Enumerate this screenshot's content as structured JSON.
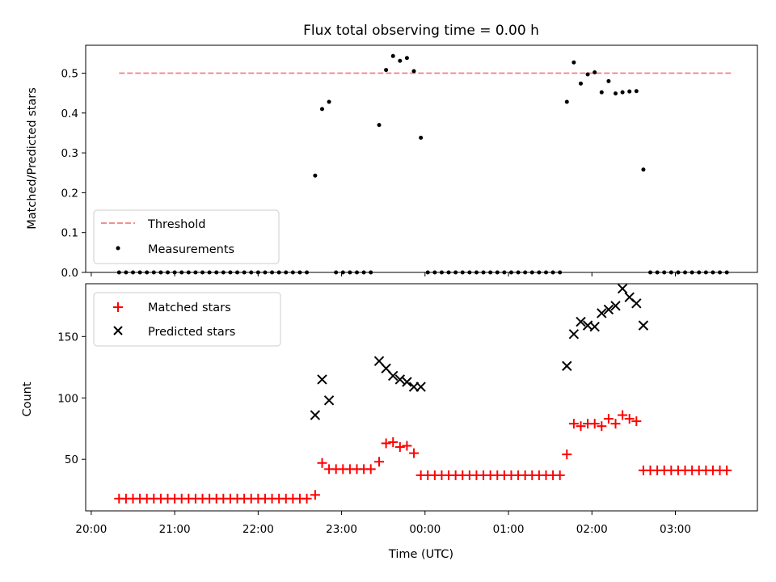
{
  "chart_data": [
    {
      "type": "scatter",
      "title": "Flux total observing time = 0.00 h",
      "ylabel": "Matched/Predicted stars",
      "xlabel": "",
      "ylim": [
        0,
        0.57
      ],
      "xlim": [
        "19:56",
        "03:59"
      ],
      "yticks": [
        0.0,
        0.1,
        0.2,
        0.3,
        0.4,
        0.5
      ],
      "ytick_labels": [
        "0.0",
        "0.1",
        "0.2",
        "0.3",
        "0.4",
        "0.5"
      ],
      "legend_position": "lower-left",
      "threshold": {
        "name": "Threshold",
        "value": 0.5,
        "x_range": [
          "20:20",
          "03:40"
        ],
        "color": "#f08080",
        "style": "dashed"
      },
      "series": [
        {
          "name": "Measurements",
          "color": "#000000",
          "marker": "dot",
          "points": [
            [
              "20:20",
              0
            ],
            [
              "20:25",
              0
            ],
            [
              "20:30",
              0
            ],
            [
              "20:35",
              0
            ],
            [
              "20:40",
              0
            ],
            [
              "20:45",
              0
            ],
            [
              "20:50",
              0
            ],
            [
              "20:55",
              0
            ],
            [
              "21:00",
              0
            ],
            [
              "21:05",
              0
            ],
            [
              "21:10",
              0
            ],
            [
              "21:15",
              0
            ],
            [
              "21:20",
              0
            ],
            [
              "21:25",
              0
            ],
            [
              "21:30",
              0
            ],
            [
              "21:35",
              0
            ],
            [
              "21:40",
              0
            ],
            [
              "21:45",
              0
            ],
            [
              "21:50",
              0
            ],
            [
              "21:55",
              0
            ],
            [
              "22:00",
              0
            ],
            [
              "22:05",
              0
            ],
            [
              "22:10",
              0
            ],
            [
              "22:15",
              0
            ],
            [
              "22:20",
              0
            ],
            [
              "22:25",
              0
            ],
            [
              "22:30",
              0
            ],
            [
              "22:35",
              0
            ],
            [
              "22:41",
              0.243
            ],
            [
              "22:46",
              0.41
            ],
            [
              "22:51",
              0.428
            ],
            [
              "22:56",
              0
            ],
            [
              "23:01",
              0
            ],
            [
              "23:06",
              0
            ],
            [
              "23:11",
              0
            ],
            [
              "23:16",
              0
            ],
            [
              "23:21",
              0
            ],
            [
              "23:27",
              0.37
            ],
            [
              "23:32",
              0.508
            ],
            [
              "23:37",
              0.543
            ],
            [
              "23:42",
              0.531
            ],
            [
              "23:47",
              0.538
            ],
            [
              "23:52",
              0.505
            ],
            [
              "23:57",
              0.338
            ],
            [
              "00:02",
              0
            ],
            [
              "00:07",
              0
            ],
            [
              "00:12",
              0
            ],
            [
              "00:17",
              0
            ],
            [
              "00:22",
              0
            ],
            [
              "00:27",
              0
            ],
            [
              "00:32",
              0
            ],
            [
              "00:37",
              0
            ],
            [
              "00:42",
              0
            ],
            [
              "00:47",
              0
            ],
            [
              "00:52",
              0
            ],
            [
              "00:57",
              0
            ],
            [
              "01:02",
              0
            ],
            [
              "01:07",
              0
            ],
            [
              "01:12",
              0
            ],
            [
              "01:17",
              0
            ],
            [
              "01:22",
              0
            ],
            [
              "01:27",
              0
            ],
            [
              "01:32",
              0
            ],
            [
              "01:37",
              0
            ],
            [
              "01:42",
              0.428
            ],
            [
              "01:47",
              0.527
            ],
            [
              "01:52",
              0.474
            ],
            [
              "01:57",
              0.497
            ],
            [
              "02:02",
              0.502
            ],
            [
              "02:07",
              0.452
            ],
            [
              "02:12",
              0.48
            ],
            [
              "02:17",
              0.449
            ],
            [
              "02:22",
              0.452
            ],
            [
              "02:27",
              0.454
            ],
            [
              "02:32",
              0.455
            ],
            [
              "02:37",
              0.258
            ],
            [
              "02:42",
              0
            ],
            [
              "02:47",
              0
            ],
            [
              "02:52",
              0
            ],
            [
              "02:57",
              0
            ],
            [
              "03:02",
              0
            ],
            [
              "03:07",
              0
            ],
            [
              "03:12",
              0
            ],
            [
              "03:17",
              0
            ],
            [
              "03:22",
              0
            ],
            [
              "03:27",
              0
            ],
            [
              "03:32",
              0
            ],
            [
              "03:37",
              0
            ]
          ]
        }
      ]
    },
    {
      "type": "scatter",
      "title": "",
      "ylabel": "Count",
      "xlabel": "Time (UTC)",
      "ylim": [
        8,
        193
      ],
      "xlim": [
        "19:56",
        "03:59"
      ],
      "yticks": [
        50,
        100,
        150
      ],
      "ytick_labels": [
        "50",
        "100",
        "150"
      ],
      "xticks": [
        "20:00",
        "21:00",
        "22:00",
        "23:00",
        "00:00",
        "01:00",
        "02:00",
        "03:00"
      ],
      "xtick_labels": [
        "20:00",
        "21:00",
        "22:00",
        "23:00",
        "00:00",
        "01:00",
        "02:00",
        "03:00"
      ],
      "legend_position": "upper-left",
      "series": [
        {
          "name": "Matched stars",
          "color": "#ff0000",
          "marker": "plus",
          "points": [
            [
              "20:20",
              18
            ],
            [
              "20:25",
              18
            ],
            [
              "20:30",
              18
            ],
            [
              "20:35",
              18
            ],
            [
              "20:40",
              18
            ],
            [
              "20:45",
              18
            ],
            [
              "20:50",
              18
            ],
            [
              "20:55",
              18
            ],
            [
              "21:00",
              18
            ],
            [
              "21:05",
              18
            ],
            [
              "21:10",
              18
            ],
            [
              "21:15",
              18
            ],
            [
              "21:20",
              18
            ],
            [
              "21:25",
              18
            ],
            [
              "21:30",
              18
            ],
            [
              "21:35",
              18
            ],
            [
              "21:40",
              18
            ],
            [
              "21:45",
              18
            ],
            [
              "21:50",
              18
            ],
            [
              "21:55",
              18
            ],
            [
              "22:00",
              18
            ],
            [
              "22:05",
              18
            ],
            [
              "22:10",
              18
            ],
            [
              "22:15",
              18
            ],
            [
              "22:20",
              18
            ],
            [
              "22:25",
              18
            ],
            [
              "22:30",
              18
            ],
            [
              "22:35",
              18
            ],
            [
              "22:41",
              21
            ],
            [
              "22:46",
              47
            ],
            [
              "22:51",
              42
            ],
            [
              "22:56",
              42
            ],
            [
              "23:01",
              42
            ],
            [
              "23:06",
              42
            ],
            [
              "23:11",
              42
            ],
            [
              "23:16",
              42
            ],
            [
              "23:21",
              42
            ],
            [
              "23:27",
              48
            ],
            [
              "23:32",
              63
            ],
            [
              "23:37",
              64
            ],
            [
              "23:42",
              60
            ],
            [
              "23:47",
              61
            ],
            [
              "23:52",
              55
            ],
            [
              "23:57",
              37
            ],
            [
              "00:02",
              37
            ],
            [
              "00:07",
              37
            ],
            [
              "00:12",
              37
            ],
            [
              "00:17",
              37
            ],
            [
              "00:22",
              37
            ],
            [
              "00:27",
              37
            ],
            [
              "00:32",
              37
            ],
            [
              "00:37",
              37
            ],
            [
              "00:42",
              37
            ],
            [
              "00:47",
              37
            ],
            [
              "00:52",
              37
            ],
            [
              "00:57",
              37
            ],
            [
              "01:02",
              37
            ],
            [
              "01:07",
              37
            ],
            [
              "01:12",
              37
            ],
            [
              "01:17",
              37
            ],
            [
              "01:22",
              37
            ],
            [
              "01:27",
              37
            ],
            [
              "01:32",
              37
            ],
            [
              "01:37",
              37
            ],
            [
              "01:42",
              54
            ],
            [
              "01:47",
              79
            ],
            [
              "01:52",
              77
            ],
            [
              "01:57",
              79
            ],
            [
              "02:02",
              79
            ],
            [
              "02:07",
              77
            ],
            [
              "02:12",
              83
            ],
            [
              "02:17",
              79
            ],
            [
              "02:22",
              86
            ],
            [
              "02:27",
              83
            ],
            [
              "02:32",
              81
            ],
            [
              "02:37",
              41
            ],
            [
              "02:42",
              41
            ],
            [
              "02:47",
              41
            ],
            [
              "02:52",
              41
            ],
            [
              "02:57",
              41
            ],
            [
              "03:02",
              41
            ],
            [
              "03:07",
              41
            ],
            [
              "03:12",
              41
            ],
            [
              "03:17",
              41
            ],
            [
              "03:22",
              41
            ],
            [
              "03:27",
              41
            ],
            [
              "03:32",
              41
            ],
            [
              "03:37",
              41
            ]
          ]
        },
        {
          "name": "Predicted stars",
          "color": "#000000",
          "marker": "x",
          "points": [
            [
              "22:41",
              86
            ],
            [
              "22:46",
              115
            ],
            [
              "22:51",
              98
            ],
            [
              "23:27",
              130
            ],
            [
              "23:32",
              124
            ],
            [
              "23:37",
              118
            ],
            [
              "23:42",
              115
            ],
            [
              "23:47",
              113
            ],
            [
              "23:52",
              109
            ],
            [
              "23:57",
              109
            ],
            [
              "01:42",
              126
            ],
            [
              "01:47",
              152
            ],
            [
              "01:52",
              162
            ],
            [
              "01:57",
              159
            ],
            [
              "02:02",
              158
            ],
            [
              "02:07",
              169
            ],
            [
              "02:12",
              172
            ],
            [
              "02:17",
              175
            ],
            [
              "02:22",
              189
            ],
            [
              "02:27",
              182
            ],
            [
              "02:32",
              177
            ],
            [
              "02:37",
              159
            ]
          ]
        }
      ]
    }
  ]
}
